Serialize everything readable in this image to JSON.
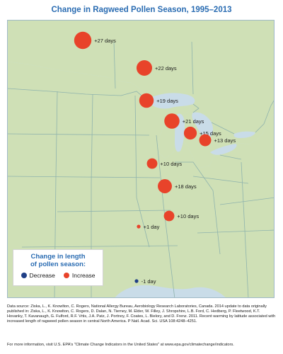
{
  "title": "Change in Ragweed Pollen Season, 1995–2013",
  "legend": {
    "title_line1": "Change in length",
    "title_line2": "of pollen season:",
    "decrease_label": "Decrease",
    "increase_label": "Increase",
    "decrease_color": "#1f3f86",
    "increase_color": "#e8432a"
  },
  "map_colors": {
    "water": "#c9dce8",
    "land": "#cfe0b6",
    "borders": "#8fb3ad"
  },
  "sites": [
    {
      "label": "+27 days",
      "days": 27
    },
    {
      "label": "+22 days",
      "days": 22
    },
    {
      "label": "+19 days",
      "days": 19
    },
    {
      "label": "+21 days",
      "days": 21
    },
    {
      "label": "+15 days",
      "days": 15
    },
    {
      "label": "+13 days",
      "days": 13
    },
    {
      "label": "+10 days",
      "days": 10
    },
    {
      "label": "+18 days",
      "days": 18
    },
    {
      "label": "+10 days",
      "days": 10
    },
    {
      "label": "+1 day",
      "days": 1
    },
    {
      "label": "-1 day",
      "days": -1
    }
  ],
  "source_text": "Data source: Ziska, L., K. Knowlton, C. Rogers, National Allergy Bureau, Aerobiology Research Laboratories, Canada. 2014 update to data originally published in: Ziska, L., K. Knowlton, C. Rogers, D. Dalan, N. Tierney, M. Elder, W. Filley, J. Shropshire, L.B. Ford, C. Hedberg, P. Fleetwood, K.T. Hovanky, T. Kavanaugh, G. Fulford, R.F. Vrtis, J.A. Patz, J. Portnoy, F. Coates, L. Bielory, and D. Frenz. 2011. Recent warming by latitude associated with increased length of ragweed pollen season in central North America. P Natl. Acad. Sci. USA 108:4248–4251.",
  "footer_text": "For more information, visit U.S. EPA's \"Climate Change Indicators in the United States\" at www.epa.gov/climatechange/indicators."
}
